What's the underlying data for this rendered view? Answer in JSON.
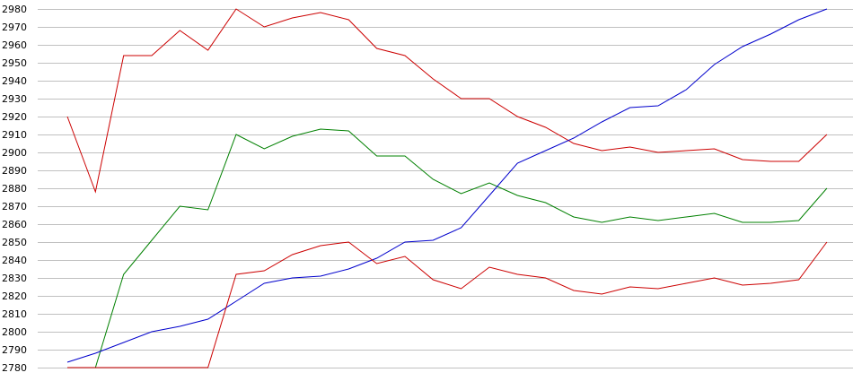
{
  "chart_data": {
    "type": "line",
    "title": "",
    "xlabel": "",
    "ylabel": "",
    "ylim": [
      2780,
      2980
    ],
    "yticks": [
      2780,
      2790,
      2800,
      2810,
      2820,
      2830,
      2840,
      2850,
      2860,
      2870,
      2880,
      2890,
      2900,
      2910,
      2920,
      2930,
      2940,
      2950,
      2960,
      2970,
      2980
    ],
    "grid": true,
    "legend": "none",
    "x": [
      1,
      2,
      3,
      4,
      5,
      6,
      7,
      8,
      9,
      10,
      11,
      12,
      13,
      14,
      15,
      16,
      17,
      18,
      19,
      20,
      21,
      22,
      23,
      24,
      25,
      26,
      27,
      28
    ],
    "series": [
      {
        "color": "#cc0000",
        "values": [
          2920,
          2878,
          2954,
          2954,
          2968,
          2957,
          2980,
          2970,
          2975,
          2978,
          2974,
          2958,
          2954,
          2941,
          2930,
          2930,
          2920,
          2914,
          2905,
          2901,
          2903,
          2900,
          2901,
          2902,
          2896,
          2895,
          2895,
          2910
        ]
      },
      {
        "color": "#008000",
        "values": [
          2780,
          2780,
          2832,
          2851,
          2870,
          2868,
          2910,
          2902,
          2909,
          2913,
          2912,
          2898,
          2898,
          2885,
          2877,
          2883,
          2876,
          2872,
          2864,
          2861,
          2864,
          2862,
          2864,
          2866,
          2861,
          2861,
          2862,
          2880
        ]
      },
      {
        "color": "#0000cc",
        "values": [
          2783,
          2788,
          2794,
          2800,
          2803,
          2807,
          2817,
          2827,
          2830,
          2831,
          2835,
          2841,
          2850,
          2851,
          2858,
          2876,
          2894,
          2901,
          2908,
          2917,
          2925,
          2926,
          2935,
          2949,
          2959,
          2966,
          2974,
          2980
        ]
      },
      {
        "color": "#cc0000",
        "values": [
          2780,
          2780,
          2780,
          2780,
          2780,
          2780,
          2832,
          2834,
          2843,
          2848,
          2850,
          2838,
          2842,
          2829,
          2824,
          2836,
          2832,
          2830,
          2823,
          2821,
          2825,
          2824,
          2827,
          2830,
          2826,
          2827,
          2829,
          2850
        ]
      }
    ]
  }
}
